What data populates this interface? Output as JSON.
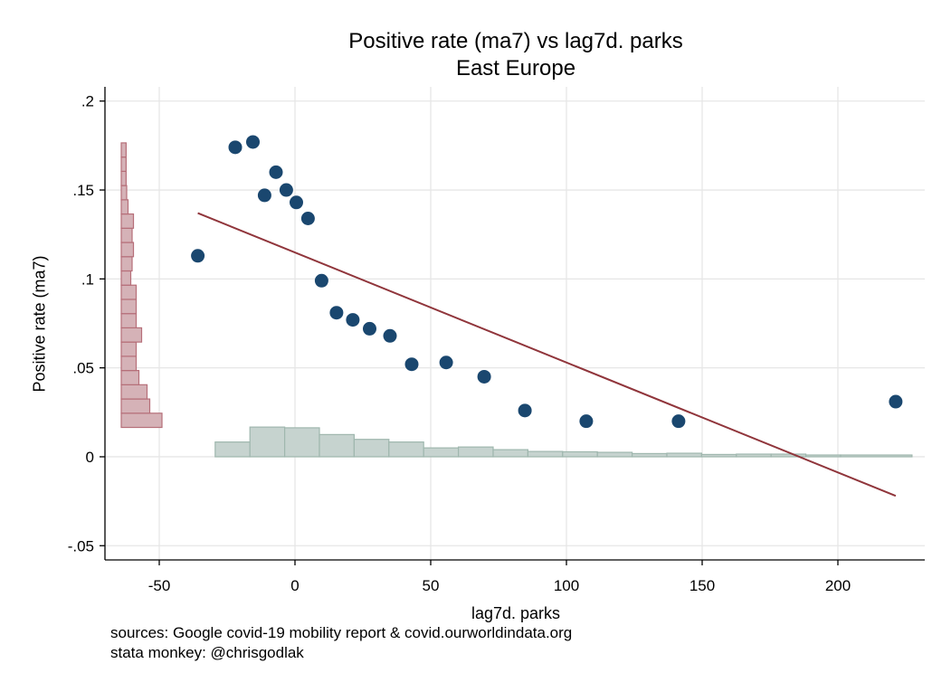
{
  "chart_data": {
    "type": "scatter",
    "title": "Positive rate (ma7) vs lag7d. parks",
    "subtitle": "East Europe",
    "xlabel": "lag7d. parks",
    "ylabel": "Positive rate (ma7)",
    "xlim": [
      -70,
      232
    ],
    "ylim": [
      -0.058,
      0.208
    ],
    "xticks": [
      -50,
      0,
      50,
      100,
      150,
      200
    ],
    "xtick_labels": [
      "-50",
      "0",
      "50",
      "100",
      "150",
      "200"
    ],
    "yticks": [
      -0.05,
      0,
      0.05,
      0.1,
      0.15,
      0.2
    ],
    "ytick_labels": [
      "-.05",
      "0",
      ".05",
      ".1",
      ".15",
      ".2"
    ],
    "grid": true,
    "points": [
      {
        "x": -35.8,
        "y": 0.113
      },
      {
        "x": -22.0,
        "y": 0.174
      },
      {
        "x": -15.5,
        "y": 0.177
      },
      {
        "x": -11.2,
        "y": 0.147
      },
      {
        "x": -7.0,
        "y": 0.16
      },
      {
        "x": -3.2,
        "y": 0.15
      },
      {
        "x": 0.5,
        "y": 0.143
      },
      {
        "x": 4.8,
        "y": 0.134
      },
      {
        "x": 9.8,
        "y": 0.099
      },
      {
        "x": 15.3,
        "y": 0.081
      },
      {
        "x": 21.3,
        "y": 0.077
      },
      {
        "x": 27.5,
        "y": 0.072
      },
      {
        "x": 35.0,
        "y": 0.068
      },
      {
        "x": 43.0,
        "y": 0.052
      },
      {
        "x": 55.7,
        "y": 0.053
      },
      {
        "x": 69.7,
        "y": 0.045
      },
      {
        "x": 84.7,
        "y": 0.026
      },
      {
        "x": 107.3,
        "y": 0.02
      },
      {
        "x": 141.3,
        "y": 0.02
      },
      {
        "x": 221.3,
        "y": 0.031
      }
    ],
    "fit_line": {
      "x1": -35.8,
      "y1": 0.137,
      "x2": 221.3,
      "y2": -0.022
    },
    "x_histogram": {
      "bin_edges": [
        -29.4,
        -16.6,
        -3.8,
        9.0,
        21.8,
        34.6,
        47.4,
        60.2,
        73.0,
        85.8,
        98.6,
        111.4,
        124.2,
        137.0,
        149.8,
        162.6,
        175.4,
        188.2,
        201.0,
        227.3
      ],
      "heights": [
        0.0083,
        0.0167,
        0.0163,
        0.0125,
        0.0098,
        0.0083,
        0.005,
        0.0055,
        0.004,
        0.003,
        0.0028,
        0.0025,
        0.0018,
        0.002,
        0.0013,
        0.0015,
        0.0015,
        0.001,
        0.001
      ]
    },
    "y_histogram": {
      "bin_edges": [
        0.0165,
        0.0245,
        0.0325,
        0.0405,
        0.0485,
        0.0565,
        0.0645,
        0.0725,
        0.0805,
        0.0885,
        0.0965,
        0.1045,
        0.1125,
        0.1205,
        0.1285,
        0.1365,
        0.1445,
        0.1525,
        0.1605,
        0.1685,
        0.1765
      ],
      "extents": [
        15.0,
        10.5,
        9.5,
        6.5,
        5.5,
        5.5,
        7.5,
        5.5,
        5.5,
        5.5,
        3.5,
        4.0,
        4.5,
        4.0,
        4.5,
        2.5,
        2.0,
        1.8,
        1.8,
        1.8
      ]
    },
    "colors": {
      "marker": "#1a476f",
      "fit": "#90353b",
      "x_hist_fill": "#c6d3cf",
      "x_hist_edge": "#9fb7ae",
      "y_hist_fill": "#d5b2b7",
      "y_hist_edge": "#b66f79",
      "grid": "#e6e6e6"
    }
  },
  "notes": [
    "sources: Google covid-19 mobility report & covid.ourworldindata.org",
    "stata monkey: @chrisgodlak"
  ]
}
